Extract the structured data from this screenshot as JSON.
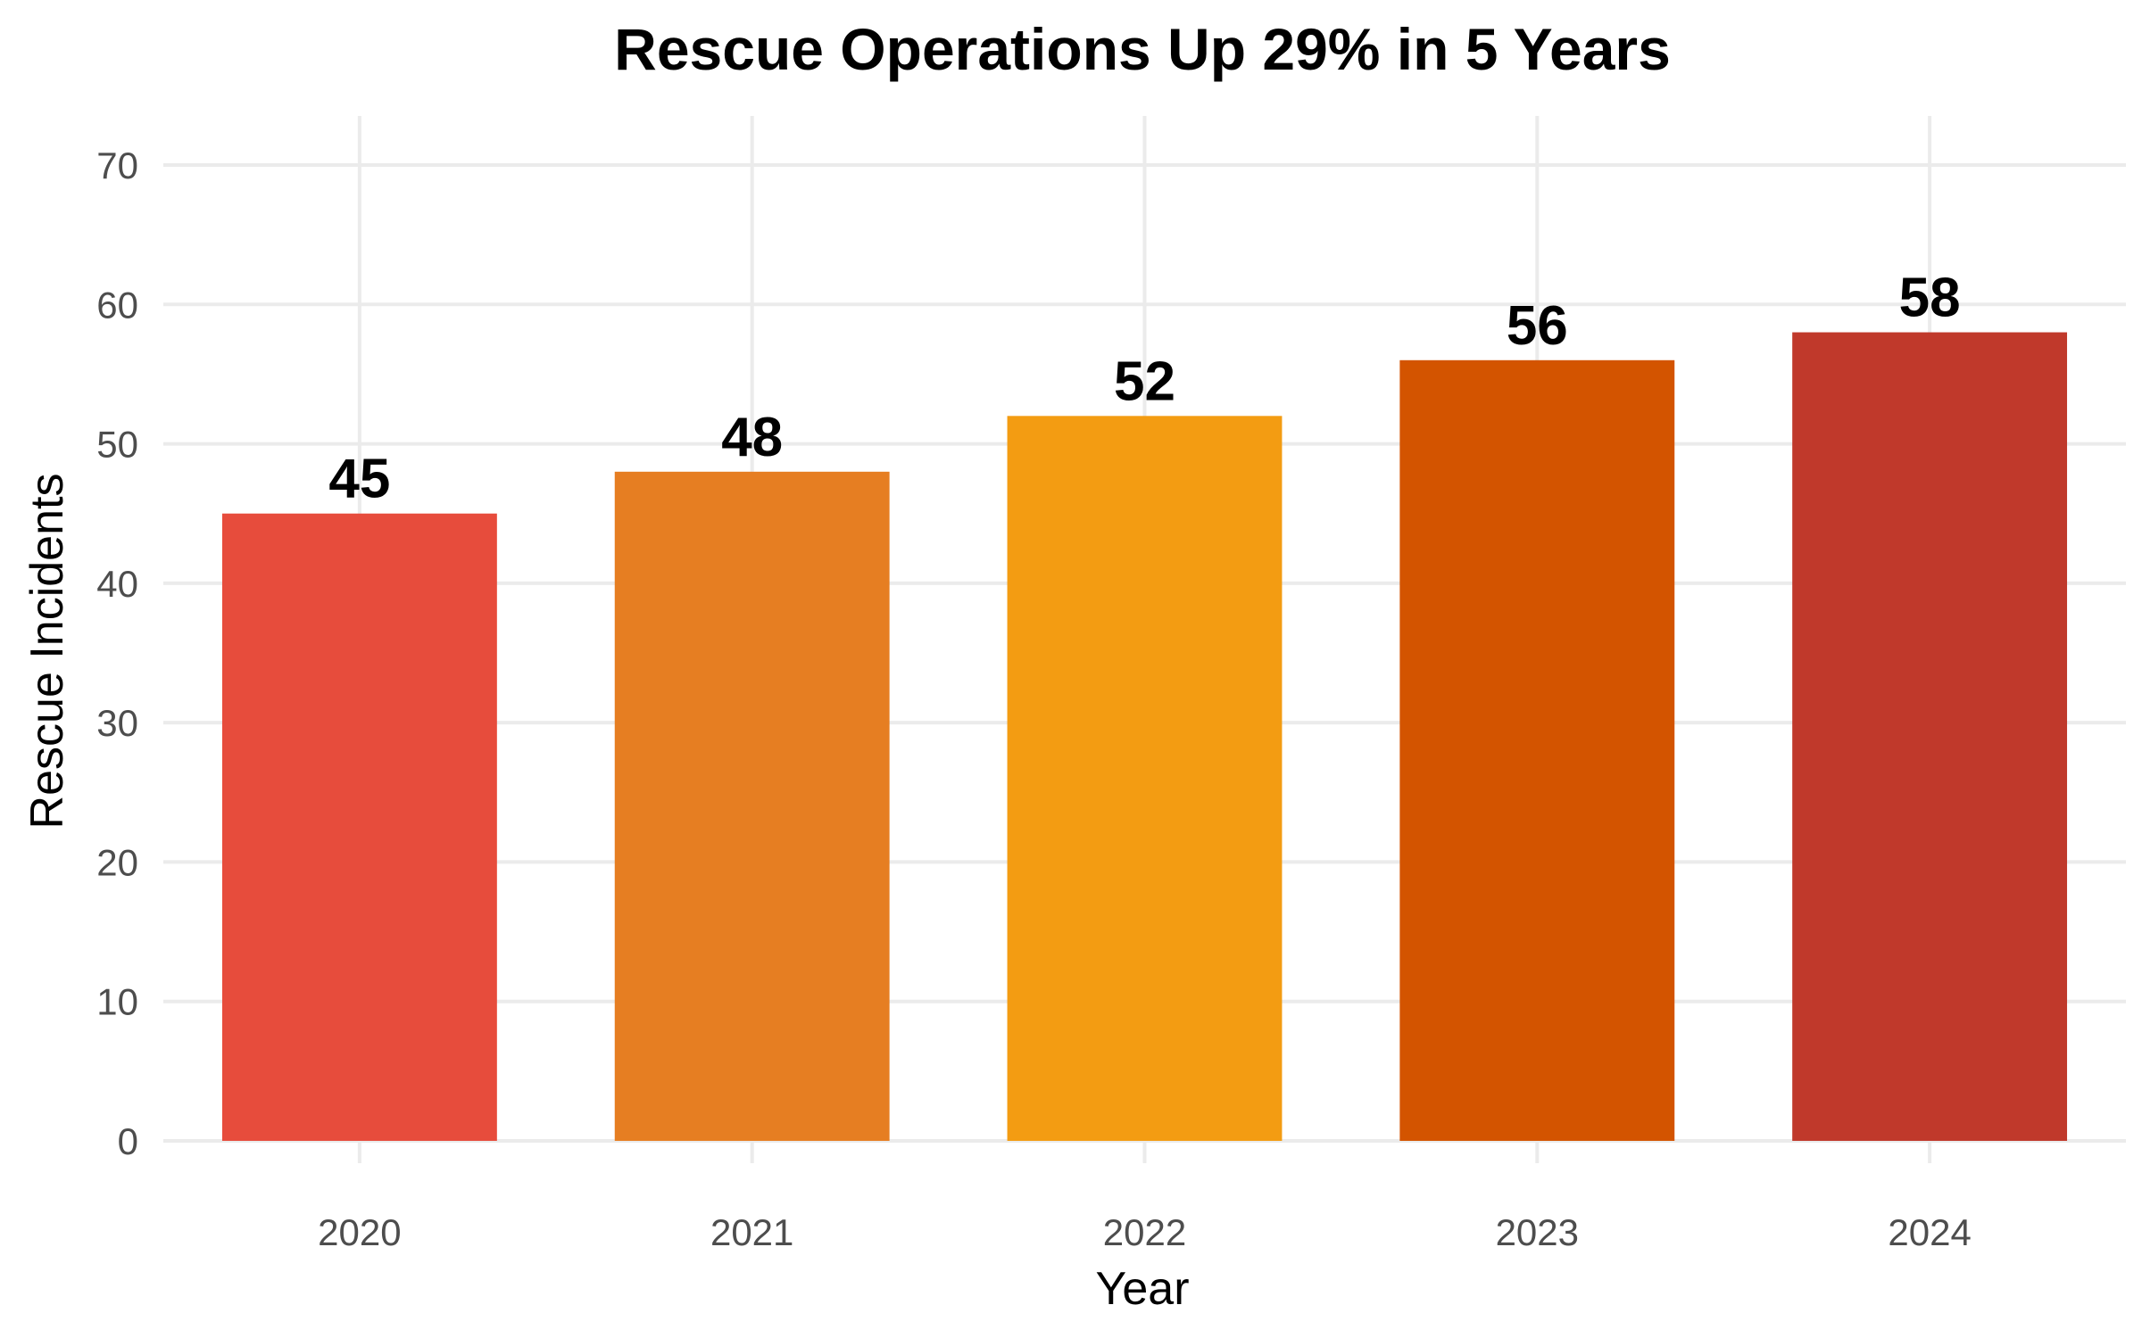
{
  "chart_data": {
    "type": "bar",
    "title": "Rescue Operations Up 29% in 5 Years",
    "xlabel": "Year",
    "ylabel": "Rescue Incidents",
    "categories": [
      "2020",
      "2021",
      "2022",
      "2023",
      "2024"
    ],
    "values": [
      45,
      48,
      52,
      56,
      58
    ],
    "colors": [
      "#E74C3C",
      "#E67E22",
      "#F39C12",
      "#D35400",
      "#C0392B"
    ],
    "ylim": [
      0,
      70
    ],
    "yticks": [
      0,
      10,
      20,
      30,
      40,
      50,
      60,
      70
    ],
    "grid": true,
    "legend": "none"
  }
}
